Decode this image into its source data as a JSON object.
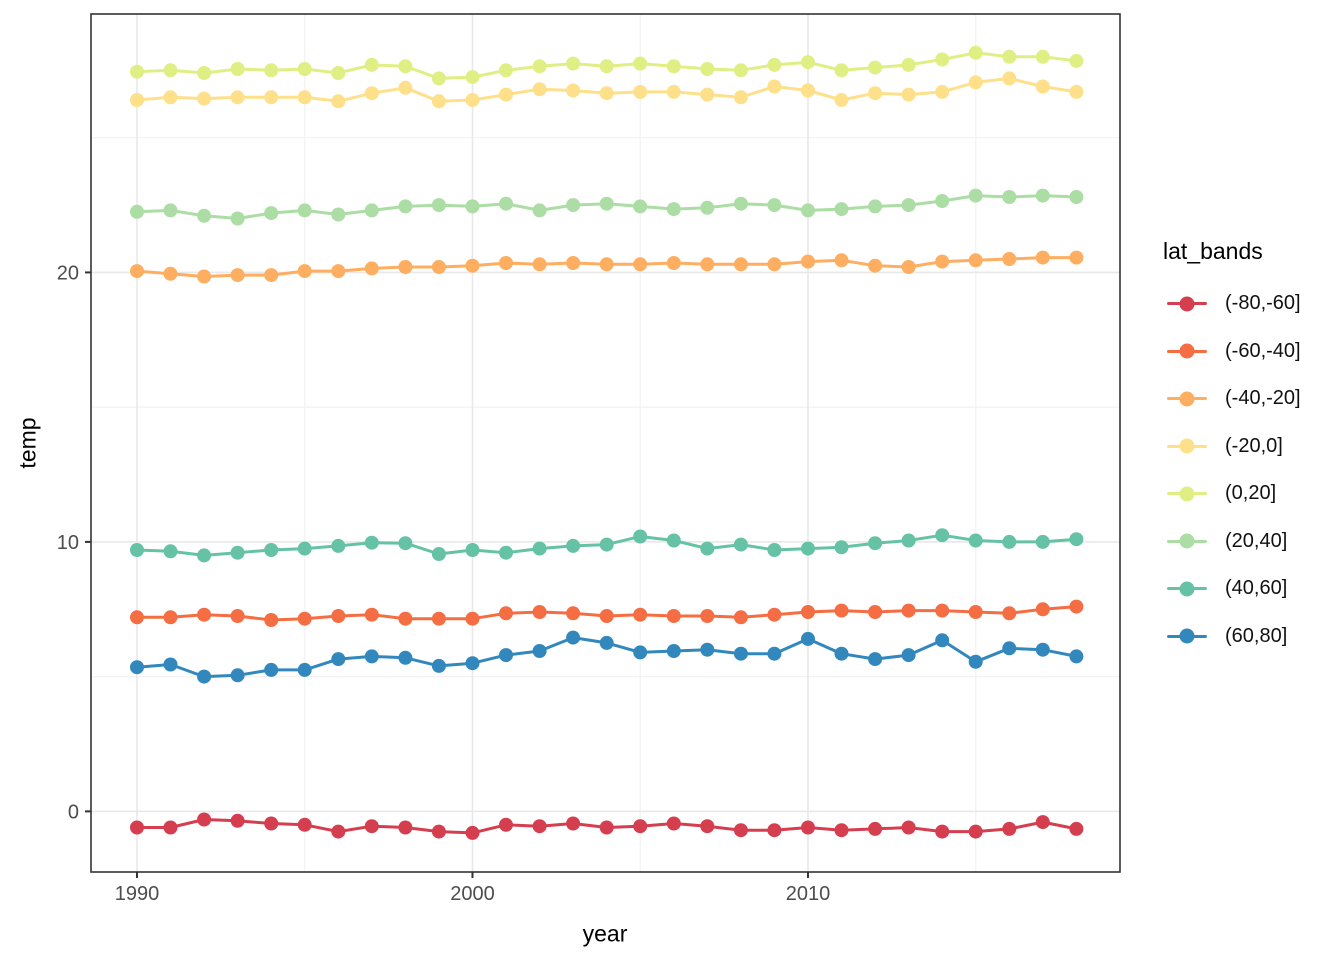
{
  "chart_data": {
    "type": "line",
    "title": "",
    "xlabel": "year",
    "ylabel": "temp",
    "legend_title": "lat_bands",
    "legend_position": "right",
    "grid": true,
    "marker": "point",
    "x": [
      1990,
      1991,
      1992,
      1993,
      1994,
      1995,
      1996,
      1997,
      1998,
      1999,
      2000,
      2001,
      2002,
      2003,
      2004,
      2005,
      2006,
      2007,
      2008,
      2009,
      2010,
      2011,
      2012,
      2013,
      2014,
      2015,
      2016,
      2017,
      2018
    ],
    "series": [
      {
        "name": "(-80,-60]",
        "color": "#d53e4f",
        "values": [
          -0.6,
          -0.6,
          -0.3,
          -0.35,
          -0.45,
          -0.5,
          -0.75,
          -0.55,
          -0.6,
          -0.75,
          -0.8,
          -0.5,
          -0.55,
          -0.45,
          -0.6,
          -0.55,
          -0.45,
          -0.55,
          -0.7,
          -0.7,
          -0.6,
          -0.7,
          -0.65,
          -0.6,
          -0.75,
          -0.75,
          -0.65,
          -0.4,
          -0.65
        ]
      },
      {
        "name": "(-60,-40]",
        "color": "#f46d43",
        "values": [
          7.2,
          7.2,
          7.3,
          7.25,
          7.1,
          7.15,
          7.25,
          7.3,
          7.15,
          7.15,
          7.15,
          7.35,
          7.4,
          7.35,
          7.25,
          7.3,
          7.25,
          7.25,
          7.2,
          7.3,
          7.4,
          7.45,
          7.4,
          7.45,
          7.45,
          7.4,
          7.35,
          7.5,
          7.6
        ]
      },
      {
        "name": "(-40,-20]",
        "color": "#fdae61",
        "values": [
          20.05,
          19.95,
          19.85,
          19.9,
          19.9,
          20.05,
          20.05,
          20.15,
          20.2,
          20.2,
          20.25,
          20.35,
          20.3,
          20.35,
          20.3,
          20.3,
          20.35,
          20.3,
          20.3,
          20.3,
          20.4,
          20.45,
          20.25,
          20.2,
          20.4,
          20.45,
          20.5,
          20.55,
          20.55
        ]
      },
      {
        "name": "(-20,0]",
        "color": "#fee08b",
        "values": [
          26.4,
          26.5,
          26.45,
          26.5,
          26.5,
          26.5,
          26.35,
          26.65,
          26.85,
          26.35,
          26.4,
          26.6,
          26.8,
          26.75,
          26.65,
          26.7,
          26.7,
          26.6,
          26.5,
          26.9,
          26.75,
          26.4,
          26.65,
          26.6,
          26.7,
          27.05,
          27.2,
          26.9,
          26.7
        ]
      },
      {
        "name": "(0,20]",
        "color": "#e0ef84",
        "values": [
          27.45,
          27.5,
          27.4,
          27.55,
          27.5,
          27.55,
          27.4,
          27.7,
          27.65,
          27.2,
          27.25,
          27.5,
          27.65,
          27.75,
          27.65,
          27.75,
          27.65,
          27.55,
          27.5,
          27.7,
          27.8,
          27.5,
          27.6,
          27.7,
          27.9,
          28.15,
          28.0,
          28.0,
          27.85
        ]
      },
      {
        "name": "(20,40]",
        "color": "#abdda4",
        "values": [
          22.25,
          22.3,
          22.1,
          22.0,
          22.2,
          22.3,
          22.15,
          22.3,
          22.45,
          22.5,
          22.45,
          22.55,
          22.3,
          22.5,
          22.55,
          22.45,
          22.35,
          22.4,
          22.55,
          22.5,
          22.3,
          22.35,
          22.45,
          22.5,
          22.65,
          22.85,
          22.8,
          22.85,
          22.8
        ]
      },
      {
        "name": "(40,60]",
        "color": "#66c2a5",
        "values": [
          9.7,
          9.65,
          9.5,
          9.6,
          9.7,
          9.75,
          9.85,
          9.97,
          9.95,
          9.55,
          9.7,
          9.6,
          9.75,
          9.85,
          9.9,
          10.2,
          10.05,
          9.75,
          9.9,
          9.7,
          9.75,
          9.8,
          9.95,
          10.05,
          10.25,
          10.05,
          10.0,
          10.0,
          10.1
        ]
      },
      {
        "name": "(60,80]",
        "color": "#3288bd",
        "values": [
          5.35,
          5.45,
          5.0,
          5.05,
          5.25,
          5.25,
          5.65,
          5.75,
          5.7,
          5.4,
          5.5,
          5.8,
          5.95,
          6.45,
          6.25,
          5.9,
          5.95,
          6.0,
          5.85,
          5.85,
          6.4,
          5.85,
          5.65,
          5.8,
          6.35,
          5.55,
          6.05,
          6.0,
          5.75
        ]
      }
    ],
    "axis": {
      "xlim": [
        1988.63,
        2019.3
      ],
      "ylim": [
        -2.25,
        29.59
      ],
      "x_major_ticks": [
        1990,
        2000,
        2010
      ],
      "x_tick_labels": [
        "1990",
        "2000",
        "2010"
      ],
      "x_minor_gridlines": [
        1995,
        2005,
        2015
      ],
      "y_major_ticks": [
        0,
        10,
        20
      ],
      "y_tick_labels": [
        "0",
        "10",
        "20"
      ],
      "y_minor_gridlines": [
        5,
        15,
        25
      ]
    }
  },
  "style": {
    "background": "#ffffff",
    "panel_fill": "#ffffff",
    "panel_border": "#333333",
    "grid_major": "#e8e8e8",
    "grid_minor": "#f2f2f2",
    "tick_color": "#333333",
    "tick_label_color": "#4d4d4d",
    "axis_title_color": "#000000",
    "line_width": 3,
    "point_radius": 7
  }
}
